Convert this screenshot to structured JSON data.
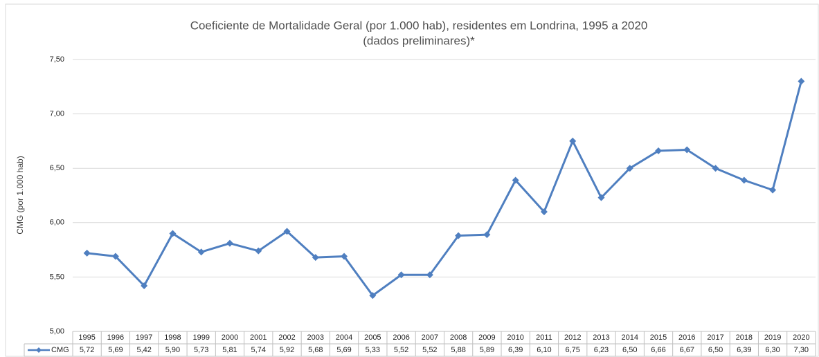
{
  "chart_data": {
    "type": "line",
    "title": "Coeficiente de Mortalidade Geral (por 1.000 hab), residentes em Londrina, 1995 a 2020",
    "subtitle": "(dados preliminares)*",
    "y_label": "CMG (por 1.000 hab)",
    "categories": [
      "1995",
      "1996",
      "1997",
      "1998",
      "1999",
      "2000",
      "2001",
      "2002",
      "2003",
      "2004",
      "2005",
      "2006",
      "2007",
      "2008",
      "2009",
      "2010",
      "2011",
      "2012",
      "2013",
      "2014",
      "2015",
      "2016",
      "2017",
      "2018",
      "2019",
      "2020"
    ],
    "series": [
      {
        "name": "CMG",
        "color": "#4f7fc0",
        "values": [
          5.72,
          5.69,
          5.42,
          5.9,
          5.73,
          5.81,
          5.74,
          5.92,
          5.68,
          5.69,
          5.33,
          5.52,
          5.52,
          5.88,
          5.89,
          6.39,
          6.1,
          6.75,
          6.23,
          6.5,
          6.66,
          6.67,
          6.5,
          6.39,
          6.3,
          7.3
        ],
        "value_labels": [
          "5,72",
          "5,69",
          "5,42",
          "5,90",
          "5,73",
          "5,81",
          "5,74",
          "5,92",
          "5,68",
          "5,69",
          "5,33",
          "5,52",
          "5,52",
          "5,88",
          "5,89",
          "6,39",
          "6,10",
          "6,75",
          "6,23",
          "6,50",
          "6,66",
          "6,67",
          "6,50",
          "6,39",
          "6,30",
          "7,30"
        ]
      }
    ],
    "ylim": [
      5,
      7.5
    ],
    "yticks": [
      {
        "value": 5,
        "label": "5,00"
      },
      {
        "value": 5.5,
        "label": "5,50"
      },
      {
        "value": 6,
        "label": "6,00"
      },
      {
        "value": 6.5,
        "label": "6,50"
      },
      {
        "value": 7,
        "label": "7,00"
      },
      {
        "value": 7.5,
        "label": "7,50"
      }
    ],
    "grid": true
  }
}
